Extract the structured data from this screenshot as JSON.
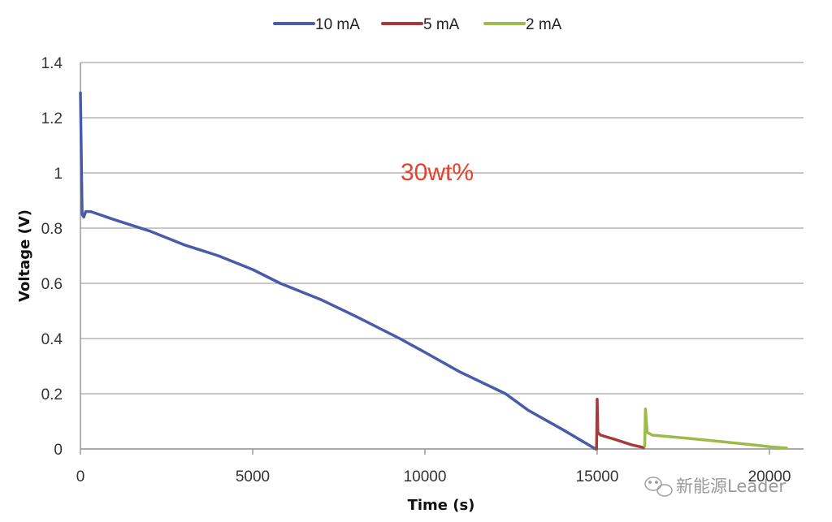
{
  "chart_data": {
    "type": "line",
    "title": "",
    "annotation": "30wt%",
    "xlabel": "Time (s)",
    "ylabel": "Voltage (V)",
    "xlim": [
      0,
      21000
    ],
    "ylim": [
      0,
      1.4
    ],
    "xticks": [
      0,
      5000,
      10000,
      15000,
      20000
    ],
    "xtick_labels": [
      "0",
      "5000",
      "10000",
      "15000",
      "20000"
    ],
    "yticks": [
      0,
      0.2,
      0.4,
      0.6,
      0.8,
      1,
      1.2,
      1.4
    ],
    "ytick_labels": [
      "0",
      "0.2",
      "0.4",
      "0.6",
      "0.8",
      "1",
      "1.2",
      "1.4"
    ],
    "grid": "horizontal",
    "legend_position": "top-center",
    "series": [
      {
        "name": "10 mA",
        "color": "#4a5ca8",
        "x": [
          0,
          50,
          100,
          150,
          300,
          1000,
          2000,
          3000,
          4000,
          5000,
          5800,
          7000,
          8000,
          9270,
          10000,
          11000,
          12340,
          13000,
          14000,
          14950
        ],
        "y": [
          1.29,
          0.85,
          0.84,
          0.86,
          0.86,
          0.83,
          0.79,
          0.74,
          0.7,
          0.65,
          0.6,
          0.54,
          0.48,
          0.4,
          0.35,
          0.28,
          0.2,
          0.14,
          0.07,
          0.0
        ]
      },
      {
        "name": "5 mA",
        "color": "#a83a3e",
        "x": [
          14980,
          15000,
          15020,
          15100,
          15500,
          16000,
          16350
        ],
        "y": [
          0.0,
          0.18,
          0.06,
          0.05,
          0.035,
          0.015,
          0.005
        ]
      },
      {
        "name": "2 mA",
        "color": "#9cbb4a",
        "x": [
          16380,
          16400,
          16450,
          16600,
          17500,
          18500,
          19500,
          20000,
          20500
        ],
        "y": [
          0.01,
          0.145,
          0.06,
          0.05,
          0.04,
          0.028,
          0.015,
          0.008,
          0.003
        ]
      }
    ]
  },
  "watermark": "新能源Leader"
}
